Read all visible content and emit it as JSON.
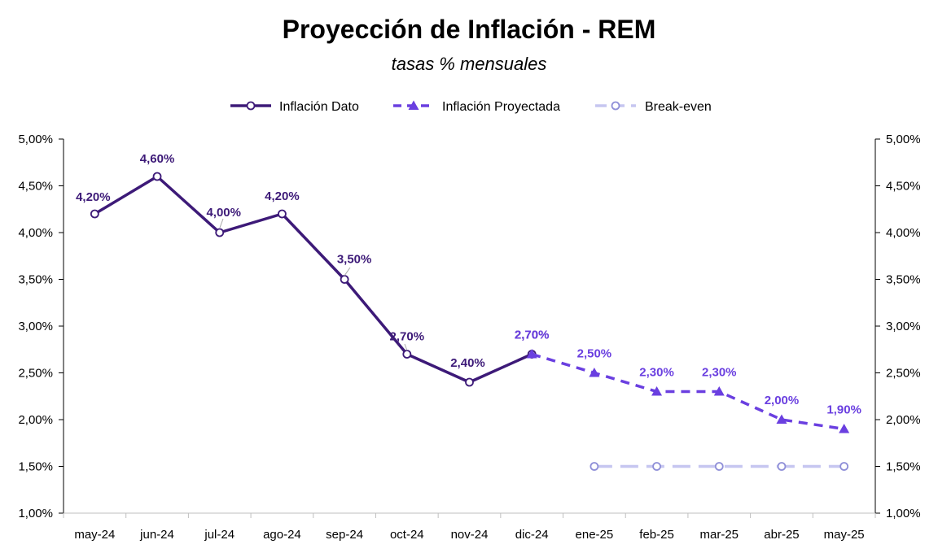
{
  "chart_data": {
    "type": "line",
    "title": "Proyección de Inflación - REM",
    "subtitle": "tasas % mensuales",
    "categories": [
      "may-24",
      "jun-24",
      "jul-24",
      "ago-24",
      "sep-24",
      "oct-24",
      "nov-24",
      "dic-24",
      "ene-25",
      "feb-25",
      "mar-25",
      "abr-25",
      "may-25"
    ],
    "ylim": [
      1.0,
      5.0
    ],
    "yticks": [
      "1,00%",
      "1,50%",
      "2,00%",
      "2,50%",
      "3,00%",
      "3,50%",
      "4,00%",
      "4,50%",
      "5,00%"
    ],
    "y_axes": "left and right",
    "grid": false,
    "legend_position": "top",
    "series": [
      {
        "name": "Inflación Dato",
        "color": "#3d1a78",
        "style": "solid",
        "marker": "hollow-circle",
        "values": [
          4.2,
          4.6,
          4.0,
          4.2,
          3.5,
          2.7,
          2.4,
          2.7,
          null,
          null,
          null,
          null,
          null
        ],
        "labels": [
          "4,20%",
          "4,60%",
          "4,00%",
          "4,20%",
          "3,50%",
          "2,70%",
          "2,40%",
          "2,70%",
          null,
          null,
          null,
          null,
          null
        ]
      },
      {
        "name": "Inflación Proyectada",
        "color": "#6a3fe0",
        "style": "dashed",
        "marker": "triangle",
        "values": [
          null,
          null,
          null,
          null,
          null,
          null,
          null,
          2.7,
          2.5,
          2.3,
          2.3,
          2.0,
          1.9
        ],
        "labels": [
          null,
          null,
          null,
          null,
          null,
          null,
          null,
          "2,70%",
          "2,50%",
          "2,30%",
          "2,30%",
          "2,00%",
          "1,90%"
        ]
      },
      {
        "name": "Break-even",
        "color": "#c6c6f0",
        "marker_color": "#8f8fd8",
        "style": "dashed",
        "marker": "hollow-circle",
        "values": [
          null,
          null,
          null,
          null,
          null,
          null,
          null,
          null,
          1.5,
          1.5,
          1.5,
          1.5,
          1.5
        ],
        "labels": [
          null,
          null,
          null,
          null,
          null,
          null,
          null,
          null,
          null,
          null,
          null,
          null,
          null
        ]
      }
    ]
  }
}
